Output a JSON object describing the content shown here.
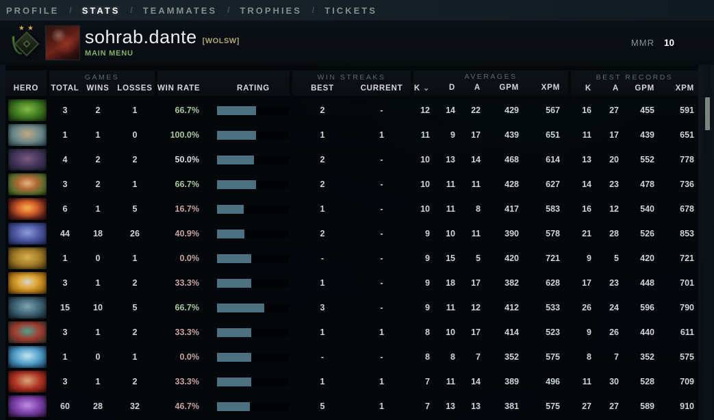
{
  "nav": {
    "separator": "/",
    "items": [
      {
        "label": "PROFILE",
        "active": false
      },
      {
        "label": "STATS",
        "active": true
      },
      {
        "label": "TEAMMATES",
        "active": false
      },
      {
        "label": "TROPHIES",
        "active": false
      },
      {
        "label": "TICKETS",
        "active": false
      }
    ]
  },
  "player": {
    "name": "sohrab.dante",
    "clan_tag": "[WOLSW]",
    "status": "MAIN MENU",
    "mmr_label": "MMR",
    "mmr_value": "10"
  },
  "icons": {
    "sort_desc": "⌄"
  },
  "table": {
    "groups": {
      "games": "GAMES",
      "streaks": "WIN STREAKS",
      "averages": "AVERAGES",
      "records": "BEST RECORDS"
    },
    "columns": {
      "hero": "HERO",
      "games": [
        "TOTAL",
        "WINS",
        "LOSSES"
      ],
      "win_rate": "WIN RATE",
      "rating": "RATING",
      "streaks": [
        "BEST",
        "CURRENT"
      ],
      "averages": [
        "K",
        "D",
        "A",
        "GPM",
        "XPM"
      ],
      "records": [
        "K",
        "A",
        "GPM",
        "XPM"
      ],
      "sorted_by": "K"
    },
    "colors": {
      "win_rate_positive": "#a9c7a1",
      "win_rate_negative": "#c9a3a3",
      "win_rate_neutral": "#d8dde0",
      "rating_bar_fill": "#4d7080"
    },
    "rows": [
      {
        "hero": "viper",
        "portrait": [
          "#86bb45",
          "#3f7a23",
          "#14240c"
        ],
        "total": "3",
        "wins": "2",
        "losses": "1",
        "win_rate": "66.7%",
        "rating_pct": 54,
        "streak_best": "2",
        "streak_current": "-",
        "k": "12",
        "d": "14",
        "a": "22",
        "gpm": "429",
        "xpm": "567",
        "rk": "16",
        "ra": "27",
        "rgpm": "455",
        "rxpm": "591"
      },
      {
        "hero": "kunkka",
        "portrait": [
          "#c3a981",
          "#6e8a8d",
          "#1d3d45"
        ],
        "total": "1",
        "wins": "1",
        "losses": "0",
        "win_rate": "100.0%",
        "rating_pct": 54,
        "streak_best": "1",
        "streak_current": "1",
        "k": "11",
        "d": "9",
        "a": "17",
        "gpm": "439",
        "xpm": "651",
        "rk": "11",
        "ra": "17",
        "rgpm": "439",
        "rxpm": "651"
      },
      {
        "hero": "anti-mage",
        "portrait": [
          "#7b5a7d",
          "#45355c",
          "#0f1c25"
        ],
        "total": "4",
        "wins": "2",
        "losses": "2",
        "win_rate": "50.0%",
        "rating_pct": 51,
        "streak_best": "2",
        "streak_current": "-",
        "k": "10",
        "d": "13",
        "a": "14",
        "gpm": "468",
        "xpm": "614",
        "rk": "13",
        "ra": "20",
        "rgpm": "552",
        "rxpm": "778"
      },
      {
        "hero": "windranger",
        "portrait": [
          "#e8b383",
          "#b06a35",
          "#4e6b2c",
          "#1c2a0e"
        ],
        "total": "3",
        "wins": "2",
        "losses": "1",
        "win_rate": "66.7%",
        "rating_pct": 54,
        "streak_best": "2",
        "streak_current": "-",
        "k": "10",
        "d": "11",
        "a": "11",
        "gpm": "428",
        "xpm": "627",
        "rk": "14",
        "ra": "23",
        "rgpm": "478",
        "rxpm": "736"
      },
      {
        "hero": "lina",
        "portrait": [
          "#f5b14e",
          "#d4622a",
          "#5e2018",
          "#201018"
        ],
        "total": "6",
        "wins": "1",
        "losses": "5",
        "win_rate": "16.7%",
        "rating_pct": 37,
        "streak_best": "1",
        "streak_current": "-",
        "k": "10",
        "d": "11",
        "a": "8",
        "gpm": "417",
        "xpm": "583",
        "rk": "16",
        "ra": "12",
        "rgpm": "540",
        "rxpm": "678"
      },
      {
        "hero": "riki",
        "portrait": [
          "#8d9cd8",
          "#4a56a0",
          "#191f4a"
        ],
        "total": "44",
        "wins": "18",
        "losses": "26",
        "win_rate": "40.9%",
        "rating_pct": 38,
        "streak_best": "2",
        "streak_current": "-",
        "k": "9",
        "d": "10",
        "a": "11",
        "gpm": "390",
        "xpm": "578",
        "rk": "21",
        "ra": "28",
        "rgpm": "526",
        "rxpm": "853"
      },
      {
        "hero": "sand-king",
        "portrait": [
          "#d8b050",
          "#a07a28",
          "#362a0e"
        ],
        "total": "1",
        "wins": "0",
        "losses": "1",
        "win_rate": "0.0%",
        "rating_pct": 47,
        "streak_best": "-",
        "streak_current": "-",
        "k": "9",
        "d": "15",
        "a": "5",
        "gpm": "420",
        "xpm": "721",
        "rk": "9",
        "ra": "5",
        "rgpm": "420",
        "rxpm": "721"
      },
      {
        "hero": "invoker",
        "portrait": [
          "#d9d4cf",
          "#e0a838",
          "#a06c14",
          "#463204"
        ],
        "total": "3",
        "wins": "1",
        "losses": "2",
        "win_rate": "33.3%",
        "rating_pct": 47,
        "streak_best": "1",
        "streak_current": "-",
        "k": "9",
        "d": "18",
        "a": "17",
        "gpm": "382",
        "xpm": "628",
        "rk": "17",
        "ra": "23",
        "rgpm": "448",
        "rxpm": "701"
      },
      {
        "hero": "phantom-assassin",
        "portrait": [
          "#82a5b5",
          "#3e6272",
          "#0d1b23"
        ],
        "total": "15",
        "wins": "10",
        "losses": "5",
        "win_rate": "66.7%",
        "rating_pct": 65,
        "streak_best": "3",
        "streak_current": "-",
        "k": "9",
        "d": "11",
        "a": "12",
        "gpm": "412",
        "xpm": "533",
        "rk": "26",
        "ra": "24",
        "rgpm": "596",
        "rxpm": "790"
      },
      {
        "hero": "bloodseeker",
        "portrait": [
          "#4fa08e",
          "#a33a2e",
          "#1c2e28"
        ],
        "total": "3",
        "wins": "1",
        "losses": "2",
        "win_rate": "33.3%",
        "rating_pct": 47,
        "streak_best": "1",
        "streak_current": "1",
        "k": "8",
        "d": "10",
        "a": "17",
        "gpm": "414",
        "xpm": "523",
        "rk": "9",
        "ra": "26",
        "rgpm": "440",
        "rxpm": "611"
      },
      {
        "hero": "morphling",
        "portrait": [
          "#c2e4f0",
          "#4e9cc8",
          "#0e2844"
        ],
        "total": "1",
        "wins": "0",
        "losses": "1",
        "win_rate": "0.0%",
        "rating_pct": 47,
        "streak_best": "-",
        "streak_current": "-",
        "k": "8",
        "d": "8",
        "a": "7",
        "gpm": "352",
        "xpm": "575",
        "rk": "8",
        "ra": "7",
        "rgpm": "352",
        "rxpm": "575"
      },
      {
        "hero": "warlock",
        "portrait": [
          "#d8a87a",
          "#b03424",
          "#330a06"
        ],
        "total": "3",
        "wins": "1",
        "losses": "2",
        "win_rate": "33.3%",
        "rating_pct": 47,
        "streak_best": "1",
        "streak_current": "1",
        "k": "7",
        "d": "11",
        "a": "14",
        "gpm": "389",
        "xpm": "496",
        "rk": "11",
        "ra": "30",
        "rgpm": "528",
        "rxpm": "709"
      },
      {
        "hero": "witch-doctor",
        "portrait": [
          "#c08ae0",
          "#7a3fa8",
          "#1d0c2c"
        ],
        "total": "60",
        "wins": "28",
        "losses": "32",
        "win_rate": "46.7%",
        "rating_pct": 45,
        "streak_best": "5",
        "streak_current": "1",
        "k": "7",
        "d": "13",
        "a": "13",
        "gpm": "381",
        "xpm": "575",
        "rk": "27",
        "ra": "27",
        "rgpm": "589",
        "rxpm": "910"
      }
    ]
  }
}
